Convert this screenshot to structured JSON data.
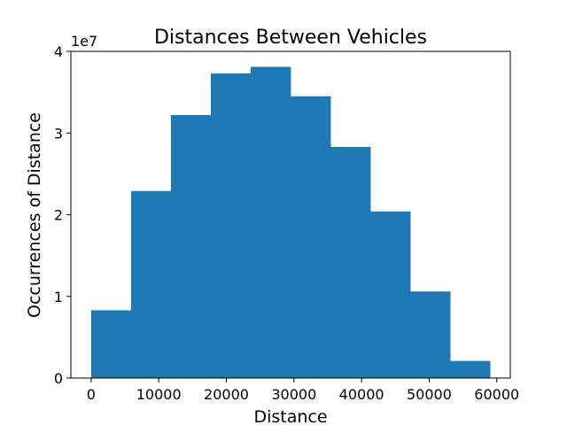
{
  "chart_data": {
    "type": "bar",
    "title": "Distances Between Vehicles",
    "xlabel": "Distance",
    "ylabel": "Occurrences of Distance",
    "y_offset_label": "1e7",
    "bar_color": "#1f77b4",
    "grid": false,
    "xlim": [
      -3000,
      62000
    ],
    "ylim": [
      0,
      40000000
    ],
    "x_ticks": [
      0,
      10000,
      20000,
      30000,
      40000,
      50000,
      60000
    ],
    "y_ticks": [
      0,
      10000000,
      20000000,
      30000000,
      40000000
    ],
    "y_tick_labels": [
      "0",
      "1",
      "2",
      "3",
      "4"
    ],
    "bins": [
      {
        "x0": 0,
        "x1": 5900,
        "value": 8300000
      },
      {
        "x0": 5900,
        "x1": 11800,
        "value": 22900000
      },
      {
        "x0": 11800,
        "x1": 17700,
        "value": 32200000
      },
      {
        "x0": 17700,
        "x1": 23600,
        "value": 37300000
      },
      {
        "x0": 23600,
        "x1": 29500,
        "value": 38100000
      },
      {
        "x0": 29500,
        "x1": 35400,
        "value": 34500000
      },
      {
        "x0": 35400,
        "x1": 41300,
        "value": 28300000
      },
      {
        "x0": 41300,
        "x1": 47200,
        "value": 20400000
      },
      {
        "x0": 47200,
        "x1": 53100,
        "value": 10600000
      },
      {
        "x0": 53100,
        "x1": 59000,
        "value": 2100000
      }
    ]
  }
}
